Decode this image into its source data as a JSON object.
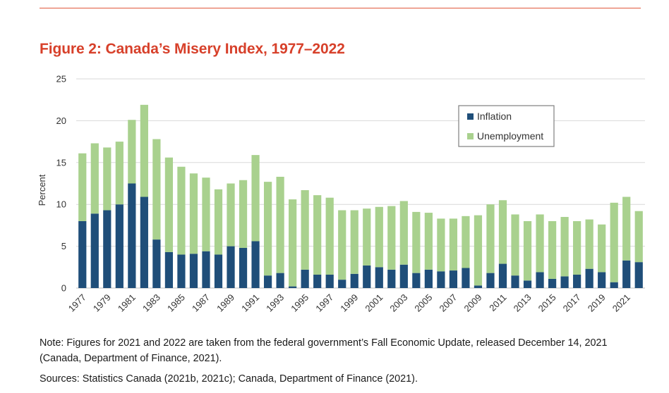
{
  "figure": {
    "title": "Figure 2: Canada’s Misery Index, 1977–2022",
    "note": "Note: Figures for 2021 and 2022 are taken from the federal government’s Fall Economic Update, released December 14, 2021 (Canada, Department of Finance, 2021).",
    "sources": "Sources: Statistics Canada (2021b, 2021c); Canada, Department of Finance (2021)."
  },
  "colors": {
    "rule": "#e1573c",
    "title": "#d7402a",
    "inflation": "#1f4e79",
    "unemployment": "#a9d18e",
    "grid": "#d9d9d9",
    "legend_border": "#7f7f7f"
  },
  "chart_data": {
    "type": "bar",
    "stacked": true,
    "title": "Figure 2: Canada’s Misery Index, 1977–2022",
    "xlabel": "",
    "ylabel": "Percent",
    "ylim": [
      0,
      25
    ],
    "yticks": [
      0,
      5,
      10,
      15,
      20,
      25
    ],
    "grid": true,
    "legend_position": "top-right",
    "categories": [
      "1977",
      "1978",
      "1979",
      "1980",
      "1981",
      "1982",
      "1983",
      "1984",
      "1985",
      "1986",
      "1987",
      "1988",
      "1989",
      "1990",
      "1991",
      "1992",
      "1993",
      "1994",
      "1995",
      "1996",
      "1997",
      "1998",
      "1999",
      "2000",
      "2001",
      "2002",
      "2003",
      "2004",
      "2005",
      "2006",
      "2007",
      "2008",
      "2009",
      "2010",
      "2011",
      "2012",
      "2013",
      "2014",
      "2015",
      "2016",
      "2017",
      "2018",
      "2019",
      "2020",
      "2021",
      "2022"
    ],
    "xtick_labels": [
      "1977",
      "1979",
      "1981",
      "1983",
      "1985",
      "1987",
      "1989",
      "1991",
      "1993",
      "1995",
      "1997",
      "1999",
      "2001",
      "2003",
      "2005",
      "2007",
      "2009",
      "2011",
      "2013",
      "2015",
      "2017",
      "2019",
      "2021"
    ],
    "series": [
      {
        "name": "Inflation",
        "values": [
          8.0,
          8.9,
          9.3,
          10.0,
          12.5,
          10.9,
          5.8,
          4.3,
          4.0,
          4.1,
          4.4,
          4.0,
          5.0,
          4.8,
          5.6,
          1.5,
          1.8,
          0.2,
          2.2,
          1.6,
          1.6,
          1.0,
          1.7,
          2.7,
          2.5,
          2.2,
          2.8,
          1.8,
          2.2,
          2.0,
          2.1,
          2.4,
          0.3,
          1.8,
          2.9,
          1.5,
          0.9,
          1.9,
          1.1,
          1.4,
          1.6,
          2.3,
          1.9,
          0.7,
          3.3,
          3.1
        ]
      },
      {
        "name": "Unemployment",
        "values": [
          8.1,
          8.4,
          7.5,
          7.5,
          7.6,
          11.0,
          12.0,
          11.3,
          10.5,
          9.6,
          8.8,
          7.8,
          7.5,
          8.1,
          10.3,
          11.2,
          11.5,
          10.4,
          9.5,
          9.5,
          9.2,
          8.3,
          7.6,
          6.8,
          7.2,
          7.6,
          7.6,
          7.3,
          6.8,
          6.3,
          6.2,
          6.2,
          8.4,
          8.2,
          7.6,
          7.3,
          7.1,
          6.9,
          6.9,
          7.1,
          6.4,
          5.9,
          5.7,
          9.5,
          7.6,
          6.1
        ]
      }
    ]
  }
}
